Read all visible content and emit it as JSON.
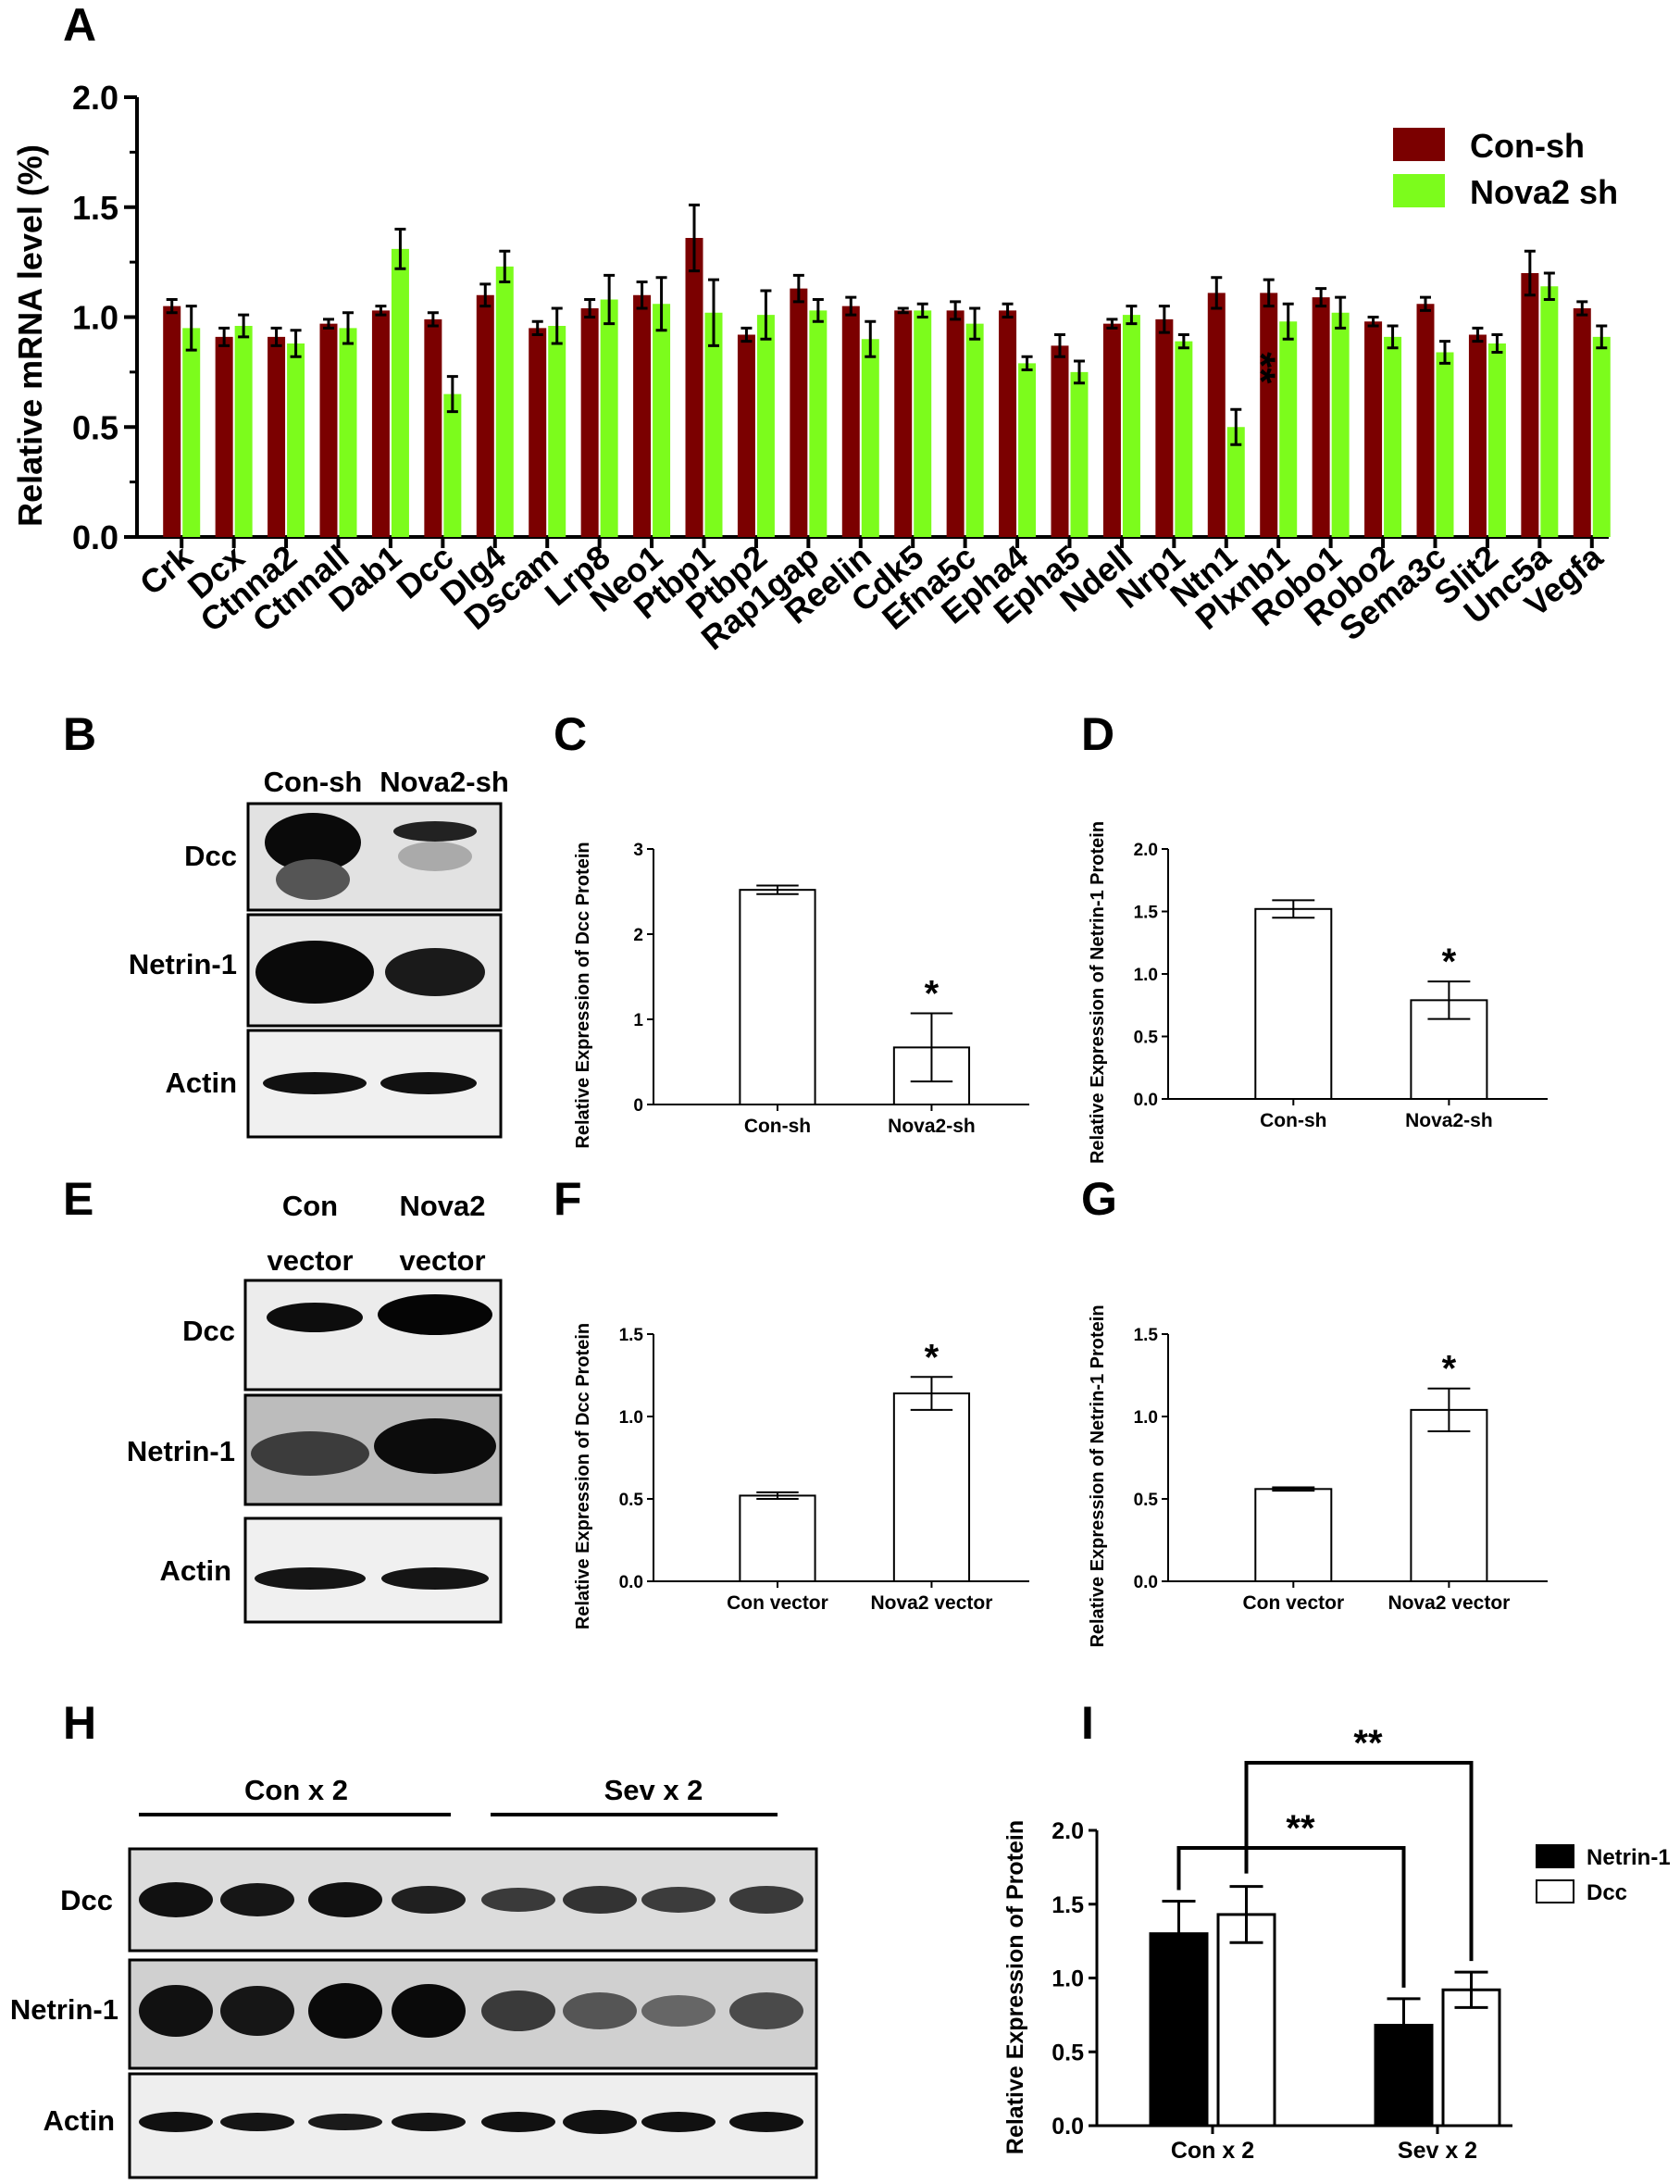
{
  "panels": {
    "A": "A",
    "B": "B",
    "C": "C",
    "D": "D",
    "E": "E",
    "F": "F",
    "G": "G",
    "H": "H",
    "I": "I"
  },
  "colors": {
    "con": "#7b0000",
    "nova": "#7cfc1c",
    "black": "#000000",
    "white": "#ffffff"
  },
  "blots": {
    "B": {
      "header": [
        "Con-sh",
        "Nova2-sh"
      ],
      "rows": [
        "Dcc",
        "Netrin-1",
        "Actin"
      ]
    },
    "E": {
      "header_top": [
        "Con",
        "Nova2"
      ],
      "header_bottom": [
        "vector",
        "vector"
      ],
      "rows": [
        "Dcc",
        "Netrin-1",
        "Actin"
      ]
    },
    "H": {
      "groups": [
        "Con x 2",
        "Sev x 2"
      ],
      "rows": [
        "Dcc",
        "Netrin-1",
        "Actin"
      ]
    }
  },
  "chart_data": [
    {
      "id": "A",
      "type": "bar",
      "ylabel": "Relative  mRNA level (%)",
      "ylim": [
        0,
        2.0
      ],
      "yticks": [
        "0.0",
        "0.5",
        "1.0",
        "1.5",
        "2.0"
      ],
      "categories": [
        "Crk",
        "Dcx",
        "Ctnna2",
        "Ctnnall",
        "Dab1",
        "Dcc",
        "Dlg4",
        "Dscam",
        "Lrp8",
        "Neo1",
        "Ptbp1",
        "Ptbp2",
        "Rap1gap",
        "Reelin",
        "Cdk5",
        "Efna5c",
        "Epha4",
        "Epha5",
        "Ndell",
        "Nrp1",
        "Ntn1",
        "Plxnb1",
        "Robo1",
        "Robo2",
        "Sema3c",
        "Slit2",
        "Unc5a",
        "Vegfa"
      ],
      "series": [
        {
          "name": "Con-sh",
          "color": "#7b0000",
          "values": [
            1.05,
            0.91,
            0.91,
            0.97,
            1.03,
            0.99,
            1.1,
            0.95,
            1.04,
            1.1,
            1.36,
            0.92,
            1.13,
            1.05,
            1.03,
            1.03,
            1.03,
            0.87,
            0.97,
            0.99,
            1.11,
            1.11,
            1.09,
            0.98,
            1.06,
            0.92,
            1.2,
            1.04
          ],
          "errors": [
            0.03,
            0.04,
            0.04,
            0.02,
            0.02,
            0.03,
            0.05,
            0.03,
            0.04,
            0.06,
            0.15,
            0.03,
            0.06,
            0.04,
            0.01,
            0.04,
            0.03,
            0.05,
            0.02,
            0.06,
            0.07,
            0.06,
            0.04,
            0.02,
            0.03,
            0.03,
            0.1,
            0.03
          ]
        },
        {
          "name": "Nova2 sh",
          "color": "#7cfc1c",
          "values": [
            0.95,
            0.96,
            0.88,
            0.95,
            1.31,
            0.65,
            1.23,
            0.96,
            1.08,
            1.06,
            1.02,
            1.01,
            1.03,
            0.9,
            1.03,
            0.97,
            0.79,
            0.75,
            1.01,
            0.89,
            0.5,
            0.98,
            1.02,
            0.91,
            0.84,
            0.88,
            1.14,
            0.91
          ],
          "errors": [
            0.1,
            0.05,
            0.06,
            0.07,
            0.09,
            0.08,
            0.07,
            0.08,
            0.11,
            0.12,
            0.15,
            0.11,
            0.05,
            0.08,
            0.03,
            0.07,
            0.03,
            0.05,
            0.04,
            0.03,
            0.08,
            0.08,
            0.07,
            0.05,
            0.05,
            0.04,
            0.06,
            0.05
          ]
        }
      ],
      "annotations": [
        {
          "category": "Ntn1",
          "text": "**"
        }
      ],
      "legend_position": "top-right"
    },
    {
      "id": "C",
      "type": "bar",
      "ylabel": "Relative Expression of Dcc Protein",
      "ylim": [
        0,
        3
      ],
      "yticks": [
        "0",
        "1",
        "2",
        "3"
      ],
      "categories": [
        "Con-sh",
        "Nova2-sh"
      ],
      "values": [
        2.52,
        0.67
      ],
      "errors": [
        0.05,
        0.4
      ],
      "annotations": [
        {
          "category": "Nova2-sh",
          "text": "*"
        }
      ]
    },
    {
      "id": "D",
      "type": "bar",
      "ylabel": "Relative Expression of Netrin-1 Protein",
      "ylim": [
        0,
        2.0
      ],
      "yticks": [
        "0.0",
        "0.5",
        "1.0",
        "1.5",
        "2.0"
      ],
      "categories": [
        "Con-sh",
        "Nova2-sh"
      ],
      "values": [
        1.52,
        0.79
      ],
      "errors": [
        0.07,
        0.15
      ],
      "annotations": [
        {
          "category": "Nova2-sh",
          "text": "*"
        }
      ]
    },
    {
      "id": "F",
      "type": "bar",
      "ylabel": "Relative Expression of Dcc Protein",
      "ylim": [
        0,
        1.5
      ],
      "yticks": [
        "0.0",
        "0.5",
        "1.0",
        "1.5"
      ],
      "categories": [
        "Con vector",
        "Nova2 vector"
      ],
      "values": [
        0.52,
        1.14
      ],
      "errors": [
        0.02,
        0.1
      ],
      "annotations": [
        {
          "category": "Nova2 vector",
          "text": "*"
        }
      ]
    },
    {
      "id": "G",
      "type": "bar",
      "ylabel": "Relative Expression of Netrin-1 Protein",
      "ylim": [
        0,
        1.5
      ],
      "yticks": [
        "0.0",
        "0.5",
        "1.0",
        "1.5"
      ],
      "categories": [
        "Con vector",
        "Nova2 vector"
      ],
      "values": [
        0.56,
        1.04
      ],
      "errors": [
        0.01,
        0.13
      ],
      "annotations": [
        {
          "category": "Nova2 vector",
          "text": "*"
        }
      ]
    },
    {
      "id": "I",
      "type": "bar",
      "ylabel": "Relative Expression of Protein",
      "ylim": [
        0,
        2.0
      ],
      "yticks": [
        "0.0",
        "0.5",
        "1.0",
        "1.5",
        "2.0"
      ],
      "categories": [
        "Con x 2",
        "Sev x 2"
      ],
      "series": [
        {
          "name": "Netrin-1",
          "color": "#000000",
          "values": [
            1.3,
            0.68
          ],
          "errors": [
            0.22,
            0.18
          ]
        },
        {
          "name": "Dcc",
          "color": "#ffffff",
          "values": [
            1.43,
            0.92
          ],
          "errors": [
            0.19,
            0.12
          ]
        }
      ],
      "significance": [
        "**",
        "**"
      ],
      "legend_position": "right"
    }
  ]
}
